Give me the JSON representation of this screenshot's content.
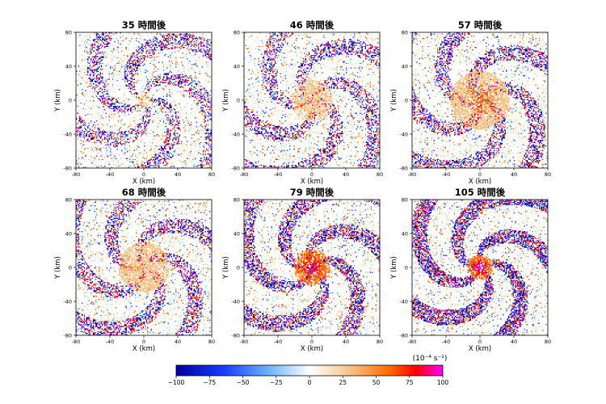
{
  "chart_data": [
    {
      "type": "heatmap",
      "title": "35 時間後",
      "xlabel": "X (km)",
      "ylabel": "Y (km)",
      "xlim": [
        -80,
        80
      ],
      "ylim": [
        -80,
        80
      ],
      "xticks": [
        -80,
        -40,
        0,
        40,
        80
      ],
      "yticks": [
        -80,
        -40,
        0,
        40,
        80
      ],
      "core_intensity": 0.15,
      "core_radius_km": 10,
      "band_density": 0.45,
      "arms": 5
    },
    {
      "type": "heatmap",
      "title": "46 時間後",
      "xlabel": "X (km)",
      "ylabel": "Y (km)",
      "xlim": [
        -80,
        80
      ],
      "ylim": [
        -80,
        80
      ],
      "xticks": [
        -80,
        -40,
        0,
        40,
        80
      ],
      "yticks": [
        -80,
        -40,
        0,
        40,
        80
      ],
      "core_intensity": 0.3,
      "core_radius_km": 25,
      "band_density": 0.45,
      "arms": 5
    },
    {
      "type": "heatmap",
      "title": "57 時間後",
      "xlabel": "X (km)",
      "ylabel": "Y (km)",
      "xlim": [
        -80,
        80
      ],
      "ylim": [
        -80,
        80
      ],
      "xticks": [
        -80,
        -40,
        0,
        40,
        80
      ],
      "yticks": [
        -80,
        -40,
        0,
        40,
        80
      ],
      "core_intensity": 0.55,
      "core_radius_km": 35,
      "band_density": 0.5,
      "arms": 5
    },
    {
      "type": "heatmap",
      "title": "68 時間後",
      "xlabel": "X (km)",
      "ylabel": "Y (km)",
      "xlim": [
        -80,
        80
      ],
      "ylim": [
        -80,
        80
      ],
      "xticks": [
        -80,
        -40,
        0,
        40,
        80
      ],
      "yticks": [
        -80,
        -40,
        0,
        40,
        80
      ],
      "core_intensity": 0.4,
      "core_radius_km": 30,
      "band_density": 0.5,
      "arms": 5
    },
    {
      "type": "heatmap",
      "title": "79 時間後",
      "xlabel": "X (km)",
      "ylabel": "Y (km)",
      "xlim": [
        -80,
        80
      ],
      "ylim": [
        -80,
        80
      ],
      "xticks": [
        -80,
        -40,
        0,
        40,
        80
      ],
      "yticks": [
        -80,
        -40,
        0,
        40,
        80
      ],
      "core_intensity": 0.9,
      "core_radius_km": 22,
      "band_density": 0.6,
      "arms": 5
    },
    {
      "type": "heatmap",
      "title": "105 時間後",
      "xlabel": "X (km)",
      "ylabel": "Y (km)",
      "xlim": [
        -80,
        80
      ],
      "ylim": [
        -80,
        80
      ],
      "xticks": [
        -80,
        -40,
        0,
        40,
        80
      ],
      "yticks": [
        -80,
        -40,
        0,
        40,
        80
      ],
      "core_intensity": 1.0,
      "core_radius_km": 15,
      "band_density": 0.7,
      "arms": 5
    }
  ],
  "colorbar": {
    "unit_label": "(10⁻⁴ s⁻¹)",
    "min": -100,
    "max": 100,
    "ticks": [
      -100,
      -75,
      -50,
      -25,
      0,
      25,
      50,
      75,
      100
    ],
    "tick_labels": [
      "−100",
      "−75",
      "−50",
      "−25",
      "0",
      "25",
      "50",
      "75",
      "100"
    ],
    "colors": {
      "neg_strong": "#0000a0",
      "neg_mid": "#2a5cff",
      "neg_light": "#9fd0ff",
      "zero": "#ffffff",
      "pos_light": "#f7c58a",
      "pos_mid": "#ff6a00",
      "pos_strong": "#ff0000",
      "pos_max": "#ff00ff"
    }
  }
}
